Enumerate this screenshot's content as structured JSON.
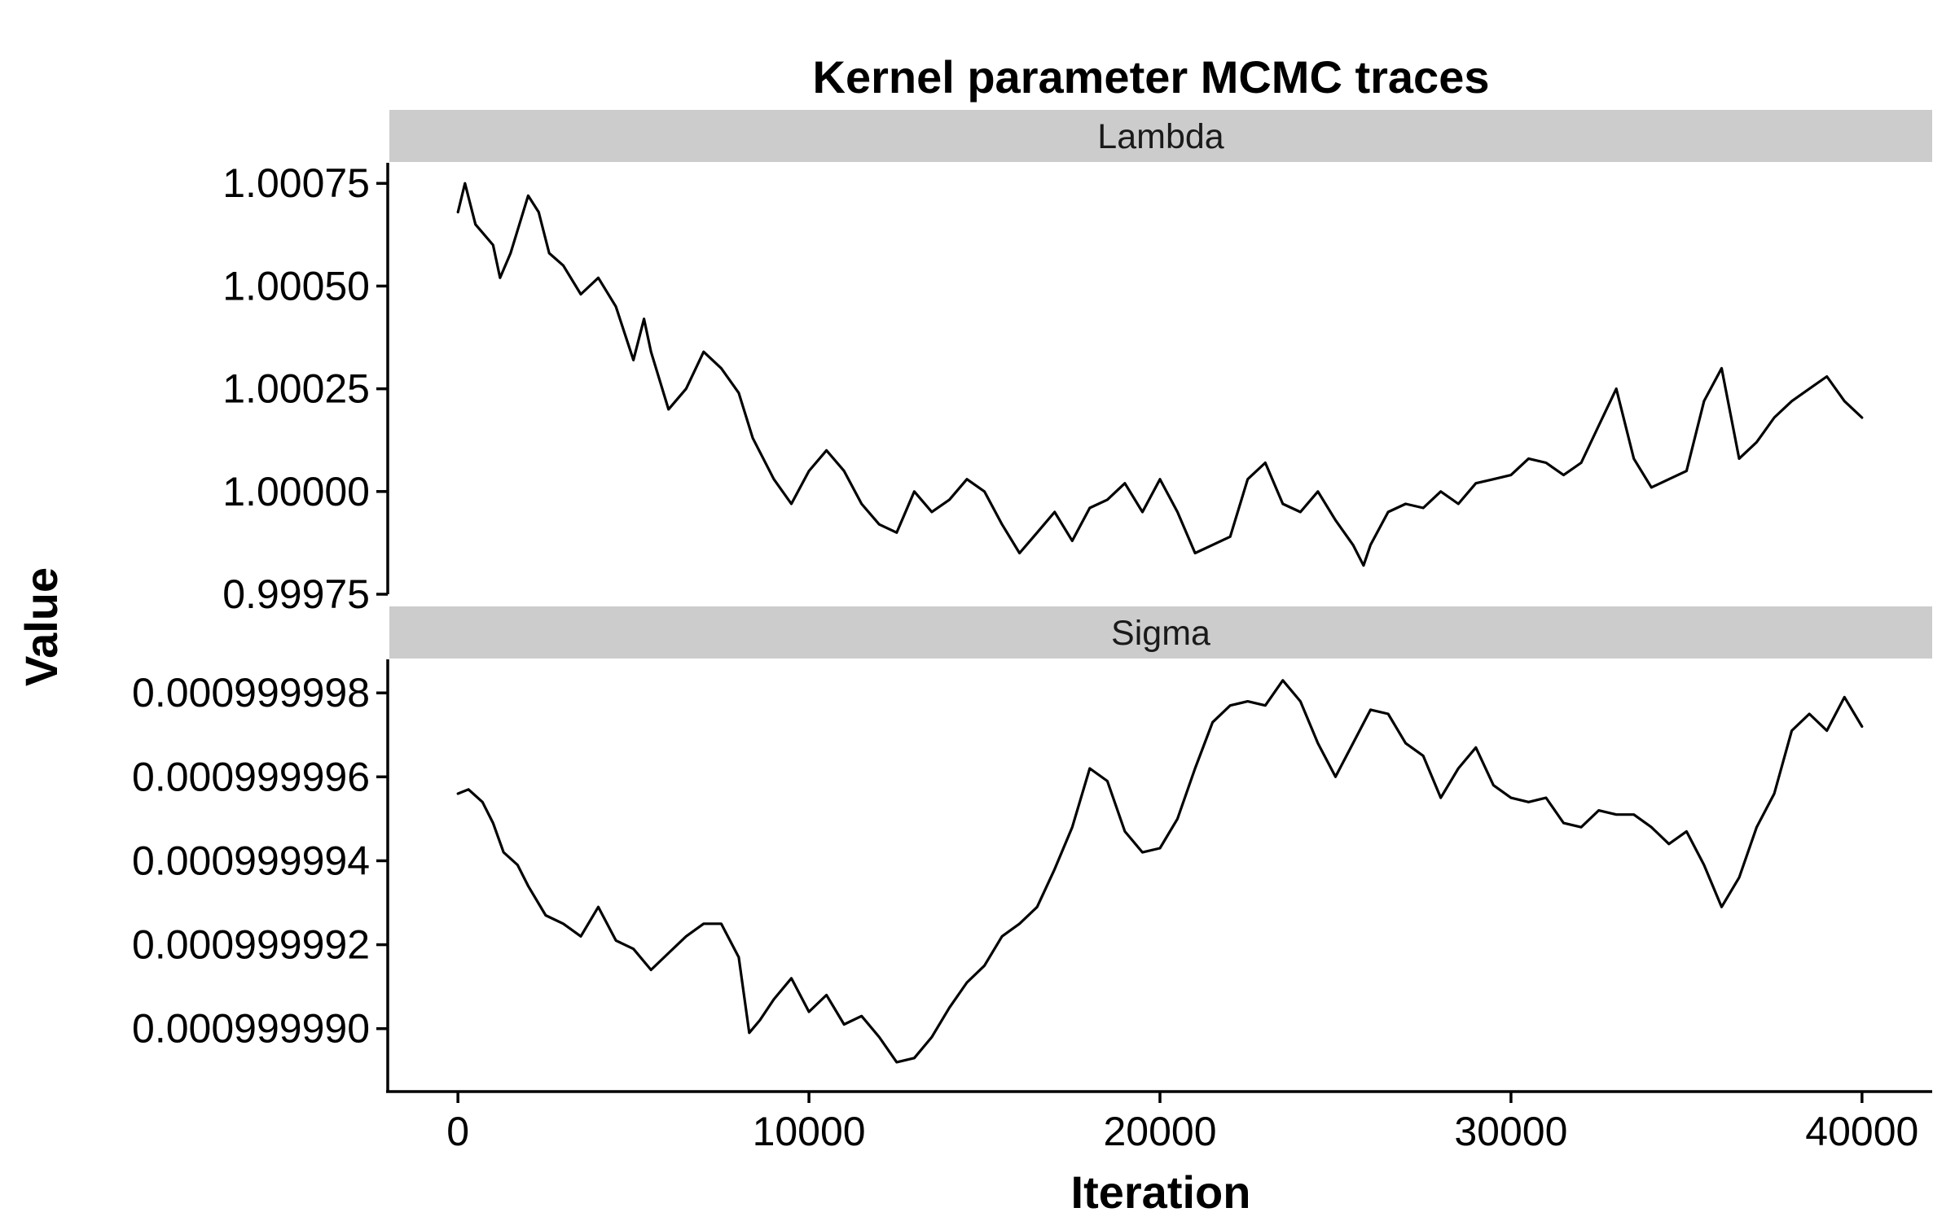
{
  "chart_data": {
    "type": "line",
    "title": "Kernel parameter MCMC traces",
    "xlabel": "Iteration",
    "ylabel": "Value",
    "grid": false,
    "legend": "none",
    "xlim": [
      -2000,
      42000
    ],
    "x_ticks": [
      "0",
      "10000",
      "20000",
      "30000",
      "40000"
    ],
    "x_tick_values": [
      0,
      10000,
      20000,
      30000,
      40000
    ],
    "panels": [
      {
        "strip_label": "Lambda",
        "ylim": [
          0.99975,
          1.0008
        ],
        "y_ticks": [
          "0.99975",
          "1.00000",
          "1.00025",
          "1.00050",
          "1.00075"
        ],
        "y_tick_values": [
          0.99975,
          1.0,
          1.00025,
          1.0005,
          1.00075
        ],
        "series": [
          {
            "x": [
              0,
              200,
              500,
              1000,
              1200,
              1500,
              2000,
              2300,
              2600,
              3000,
              3500,
              4000,
              4500,
              5000,
              5300,
              5500,
              6000,
              6500,
              7000,
              7500,
              8000,
              8400,
              9000,
              9500,
              10000,
              10500,
              11000,
              11500,
              12000,
              12500,
              13000,
              13500,
              14000,
              14500,
              15000,
              15500,
              16000,
              16500,
              17000,
              17500,
              18000,
              18500,
              19000,
              19500,
              20000,
              20500,
              21000,
              21500,
              22000,
              22500,
              23000,
              23500,
              24000,
              24500,
              25000,
              25500,
              25800,
              26000,
              26500,
              27000,
              27500,
              28000,
              28500,
              29000,
              29500,
              30000,
              30500,
              31000,
              31500,
              32000,
              32500,
              33000,
              33500,
              34000,
              34500,
              35000,
              35500,
              36000,
              36500,
              37000,
              37500,
              38000,
              38500,
              39000,
              39500,
              40000
            ],
            "y": [
              1.00068,
              1.00075,
              1.00065,
              1.0006,
              1.00052,
              1.00058,
              1.00072,
              1.00068,
              1.00058,
              1.00055,
              1.00048,
              1.00052,
              1.00045,
              1.00032,
              1.00042,
              1.00034,
              1.0002,
              1.00025,
              1.00034,
              1.0003,
              1.00024,
              1.00013,
              1.00003,
              0.99997,
              1.00005,
              1.0001,
              1.00005,
              0.99997,
              0.99992,
              0.9999,
              1.0,
              0.99995,
              0.99998,
              1.00003,
              1.0,
              0.99992,
              0.99985,
              0.9999,
              0.99995,
              0.99988,
              0.99996,
              0.99998,
              1.00002,
              0.99995,
              1.00003,
              0.99995,
              0.99985,
              0.99987,
              0.99989,
              1.00003,
              1.00007,
              0.99997,
              0.99995,
              1.0,
              0.99993,
              0.99987,
              0.99982,
              0.99987,
              0.99995,
              0.99997,
              0.99996,
              1.0,
              0.99997,
              1.00002,
              1.00003,
              1.00004,
              1.00008,
              1.00007,
              1.00004,
              1.00007,
              1.00016,
              1.00025,
              1.00008,
              1.00001,
              1.00003,
              1.00005,
              1.00022,
              1.0003,
              1.00008,
              1.00012,
              1.00018,
              1.00022,
              1.00025,
              1.00028,
              1.00022,
              1.00018
            ]
          }
        ]
      },
      {
        "strip_label": "Sigma",
        "ylim": [
          0.0009999885,
          0.0009999988
        ],
        "y_ticks": [
          "0.000999990",
          "0.000999992",
          "0.000999994",
          "0.000999996",
          "0.000999998"
        ],
        "y_tick_values": [
          0.00099999,
          0.000999992,
          0.000999994,
          0.000999996,
          0.000999998
        ],
        "series": [
          {
            "x": [
              0,
              300,
              700,
              1000,
              1300,
              1700,
              2000,
              2500,
              3000,
              3500,
              4000,
              4500,
              5000,
              5500,
              6000,
              6500,
              7000,
              7500,
              8000,
              8300,
              8600,
              9000,
              9500,
              10000,
              10500,
              11000,
              11500,
              12000,
              12500,
              13000,
              13500,
              14000,
              14500,
              15000,
              15500,
              16000,
              16500,
              17000,
              17500,
              18000,
              18500,
              19000,
              19500,
              20000,
              20500,
              21000,
              21500,
              22000,
              22500,
              23000,
              23500,
              24000,
              24500,
              25000,
              25500,
              26000,
              26500,
              27000,
              27500,
              28000,
              28500,
              29000,
              29500,
              30000,
              30500,
              31000,
              31500,
              32000,
              32500,
              33000,
              33500,
              34000,
              34500,
              35000,
              35500,
              36000,
              36500,
              37000,
              37500,
              38000,
              38500,
              39000,
              39500,
              40000
            ],
            "y": [
              0.0009999956,
              0.0009999957,
              0.0009999954,
              0.0009999949,
              0.0009999942,
              0.0009999939,
              0.0009999934,
              0.0009999927,
              0.0009999925,
              0.0009999922,
              0.0009999929,
              0.0009999921,
              0.0009999919,
              0.0009999914,
              0.0009999918,
              0.0009999922,
              0.0009999925,
              0.0009999925,
              0.0009999917,
              0.0009999899,
              0.0009999902,
              0.0009999907,
              0.0009999912,
              0.0009999904,
              0.0009999908,
              0.0009999901,
              0.0009999903,
              0.0009999898,
              0.0009999892,
              0.0009999893,
              0.0009999898,
              0.0009999905,
              0.0009999911,
              0.0009999915,
              0.0009999922,
              0.0009999925,
              0.0009999929,
              0.0009999938,
              0.0009999948,
              0.0009999962,
              0.0009999959,
              0.0009999947,
              0.0009999942,
              0.0009999943,
              0.000999995,
              0.0009999962,
              0.0009999973,
              0.0009999977,
              0.0009999978,
              0.0009999977,
              0.0009999983,
              0.0009999978,
              0.0009999968,
              0.000999996,
              0.0009999968,
              0.0009999976,
              0.0009999975,
              0.0009999968,
              0.0009999965,
              0.0009999955,
              0.0009999962,
              0.0009999967,
              0.0009999958,
              0.0009999955,
              0.0009999954,
              0.0009999955,
              0.0009999949,
              0.0009999948,
              0.0009999952,
              0.0009999951,
              0.0009999951,
              0.0009999948,
              0.0009999944,
              0.0009999947,
              0.0009999939,
              0.0009999929,
              0.0009999936,
              0.0009999948,
              0.0009999956,
              0.0009999971,
              0.0009999975,
              0.0009999971,
              0.0009999979,
              0.0009999972
            ]
          }
        ]
      }
    ]
  }
}
